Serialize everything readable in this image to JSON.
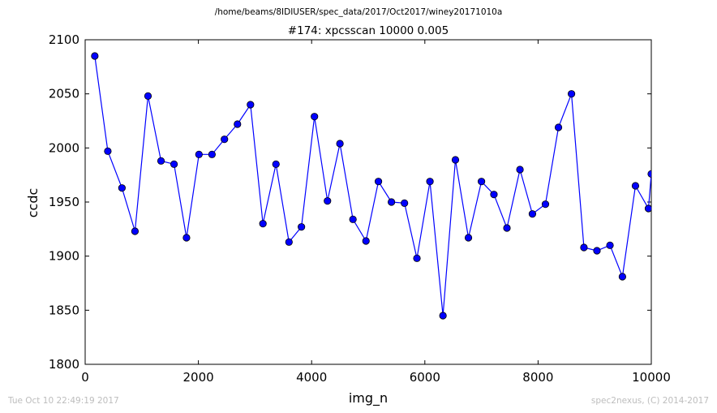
{
  "header": {
    "supertitle": "/home/beams/8IDIUSER/spec_data/2017/Oct2017/winey20171010a",
    "title": "#174: xpcsscan 10000 0.005"
  },
  "footer": {
    "timestamp": "Tue Oct 10 22:49:19 2017",
    "credit": "spec2nexus, (C) 2014-2017"
  },
  "chart_data": {
    "type": "line",
    "xlabel": "img_n",
    "ylabel": "ccdc",
    "xlim": [
      0,
      10000
    ],
    "ylim": [
      1800,
      2100
    ],
    "xticks": [
      "0",
      "2000",
      "4000",
      "6000",
      "8000",
      "10000"
    ],
    "yticks": [
      "1800",
      "1850",
      "1900",
      "1950",
      "2000",
      "2050",
      "2100"
    ],
    "grid": false,
    "marker": "circle",
    "line_color": "#0000ff",
    "series": [
      {
        "x": [
          170,
          400,
          650,
          880,
          1110,
          1340,
          1570,
          1790,
          2010,
          2240,
          2460,
          2690,
          2920,
          3140,
          3370,
          3600,
          3820,
          4050,
          4280,
          4500,
          4730,
          4960,
          5180,
          5410,
          5640,
          5860,
          6090,
          6320,
          6540,
          6770,
          7000,
          7220,
          7450,
          7680,
          7900,
          8130,
          8360,
          8590,
          8810,
          9040,
          9270,
          9490,
          9720,
          9950,
          10000
        ],
        "y": [
          2085,
          1997,
          1963,
          1923,
          2048,
          1988,
          1985,
          1917,
          1994,
          1994,
          2008,
          2022,
          2040,
          1930,
          1985,
          1913,
          1927,
          2029,
          1951,
          2004,
          1934,
          1914,
          1969,
          1950,
          1949,
          1898,
          1969,
          1845,
          1989,
          1917,
          1969,
          1957,
          1926,
          1980,
          1939,
          1948,
          2019,
          2050,
          1908,
          1905,
          1910,
          1881,
          1965,
          1944,
          1976
        ]
      }
    ]
  }
}
